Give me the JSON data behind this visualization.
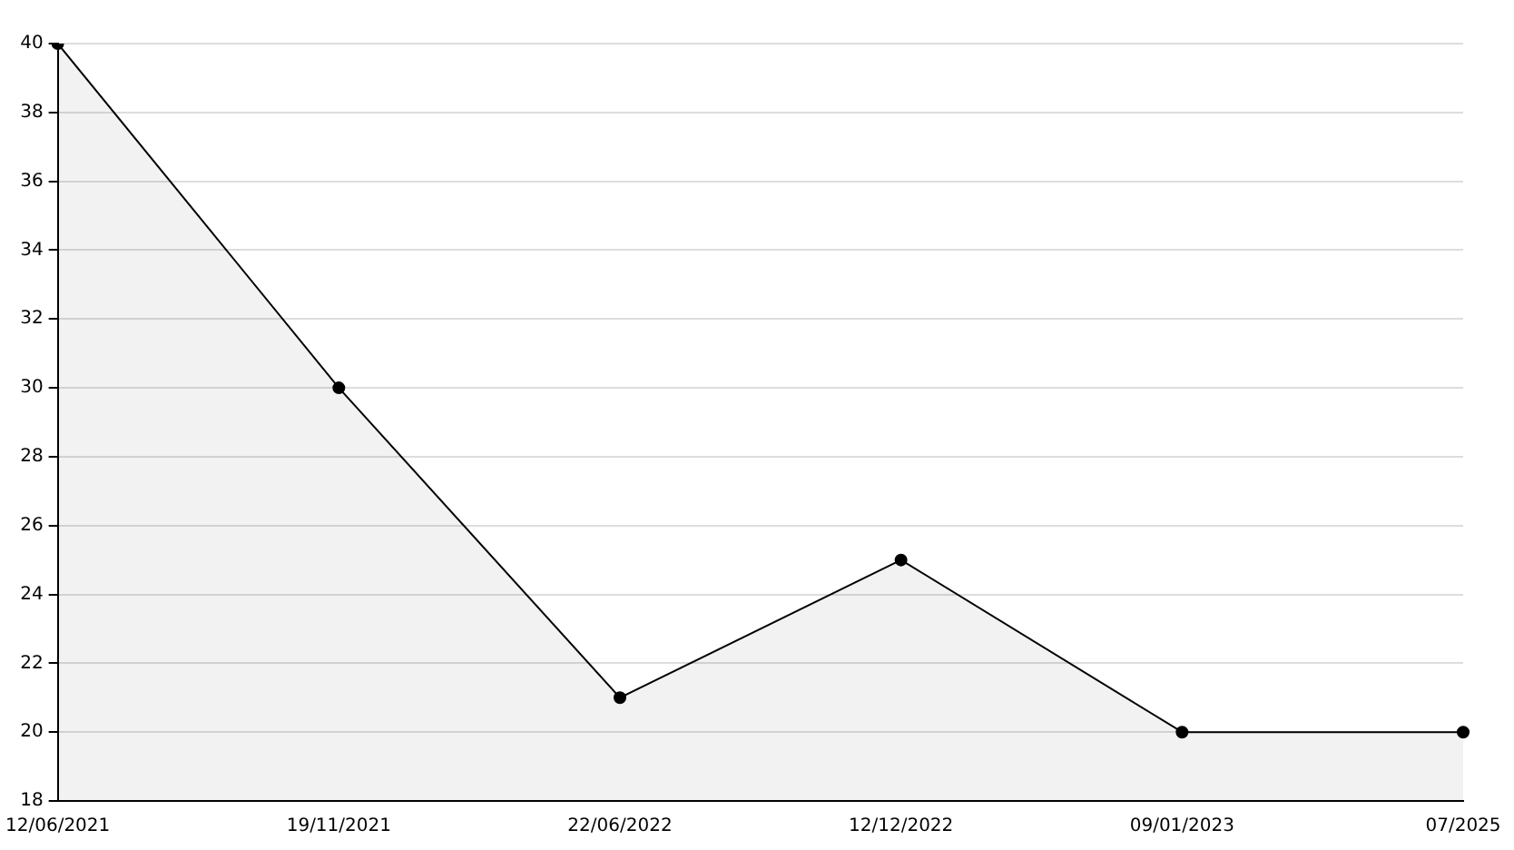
{
  "chart_data": {
    "type": "area",
    "categories": [
      "12/06/2021",
      "19/11/2021",
      "22/06/2022",
      "12/12/2022",
      "09/01/2023",
      "07/2025"
    ],
    "series": [
      {
        "color": "#000000",
        "values": [
          40,
          30,
          21,
          25,
          20,
          20
        ]
      }
    ],
    "ylim": [
      18,
      40
    ],
    "yticks": [
      18,
      20,
      22,
      24,
      26,
      28,
      30,
      32,
      34,
      36,
      38,
      40
    ],
    "grid": "y",
    "legend": false,
    "marker": "circle",
    "line_style": "solid"
  }
}
